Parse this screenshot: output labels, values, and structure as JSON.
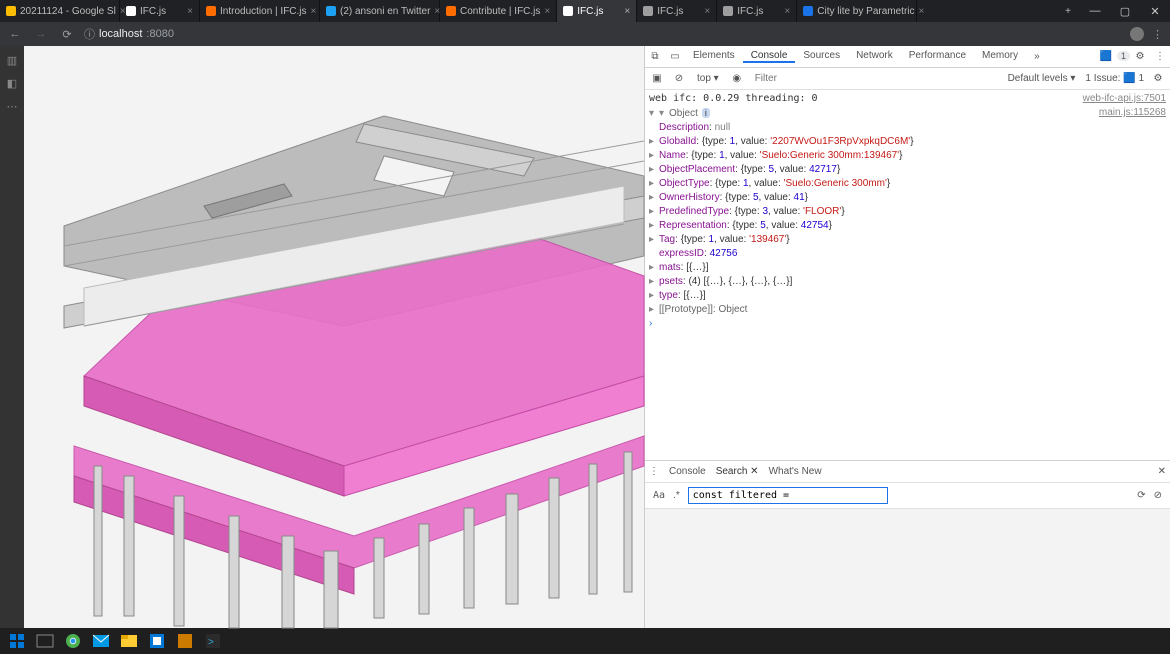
{
  "browser": {
    "tabs": [
      {
        "label": "20211124 - Google Sl",
        "favicon": "#fbbc04",
        "active": false
      },
      {
        "label": "IFC.js",
        "favicon": "#ffffff",
        "active": false
      },
      {
        "label": "Introduction | IFC.js",
        "favicon": "#ff6d00",
        "active": false
      },
      {
        "label": "(2) ansoni en Twitter",
        "favicon": "#1da1f2",
        "active": false
      },
      {
        "label": "Contribute | IFC.js",
        "favicon": "#ff6d00",
        "active": false
      },
      {
        "label": "IFC.js",
        "favicon": "#ffffff",
        "active": true
      },
      {
        "label": "IFC.js",
        "favicon": "#9e9e9e",
        "active": false
      },
      {
        "label": "IFC.js",
        "favicon": "#9e9e9e",
        "active": false
      },
      {
        "label": "City lite by Parametric",
        "favicon": "#1a73e8",
        "active": false
      }
    ],
    "url_info_icon": "ⓘ",
    "url_host": "localhost",
    "url_port": ":8080"
  },
  "devtools": {
    "panels": [
      "Elements",
      "Console",
      "Sources",
      "Network",
      "Performance",
      "Memory"
    ],
    "active_panel": "Console",
    "more": "»",
    "issues_badge": "1",
    "filter_top": "top ▾",
    "filter_placeholder": "Filter",
    "levels": "Default levels ▾",
    "issue_text": "1 Issue:",
    "issue_badge": "1",
    "drawer_tabs": [
      "Console",
      "Search",
      "What's New"
    ],
    "drawer_active": "Search",
    "search_value": "const filtered =",
    "search_aa": "Aa",
    "search_regex": ".*"
  },
  "console": {
    "line1_msg": "web ifc: 0.0.29 threading: 0",
    "line1_src": "web-ifc-api.js:7501",
    "line2_src": "main.js:115268",
    "object_label": "Object",
    "props": {
      "Description": "null",
      "GlobalId": {
        "type": 1,
        "value": "2207WvOu1F3RpVxpkqDC6M"
      },
      "Name": {
        "type": 1,
        "value": "Suelo:Generic 300mm:139467"
      },
      "ObjectPlacement": {
        "type": 5,
        "value": 42717
      },
      "ObjectType": {
        "type": 1,
        "value": "Suelo:Generic 300mm"
      },
      "OwnerHistory": {
        "type": 5,
        "value": 41
      },
      "PredefinedType": {
        "type": 3,
        "value": "FLOOR"
      },
      "Representation": {
        "type": 5,
        "value": 42754
      },
      "Tag": {
        "type": 1,
        "value": "139467"
      },
      "expressID": 42756,
      "mats_repr": "[{…}]",
      "psets_repr": "(4) [{…}, {…}, {…}, {…}]",
      "type_repr": "[{…}]",
      "proto": "[[Prototype]]: Object"
    }
  },
  "colors": {
    "highlight": "#e86fc8",
    "slab": "#b9b9b9",
    "slab_dark": "#9a9a9a",
    "wall": "#e5e5e5",
    "edge": "#7a7a7a",
    "column": "#cfcfcf"
  }
}
